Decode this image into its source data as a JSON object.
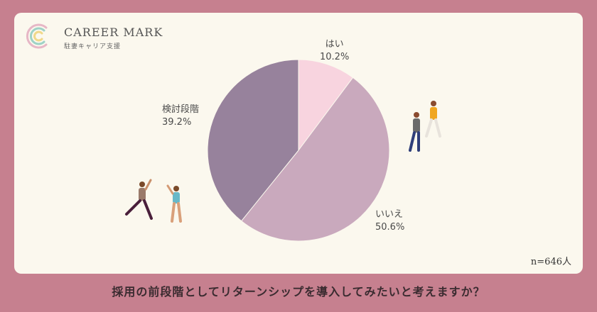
{
  "brand": {
    "name": "CAREER MARK",
    "sub": "駐妻キャリア支援"
  },
  "colors": {
    "background": "#c6808f",
    "card": "#fbf8ee",
    "slice_yes": "#f8d4df",
    "slice_no": "#c9a9bd",
    "slice_consider": "#97829c"
  },
  "chart_data": {
    "type": "pie",
    "slices": [
      {
        "label": "はい",
        "value": 10.2,
        "display": "10.2%"
      },
      {
        "label": "いいえ",
        "value": 50.6,
        "display": "50.6%"
      },
      {
        "label": "検討段階",
        "value": 39.2,
        "display": "39.2%"
      }
    ],
    "start": "12 o'clock",
    "direction": "clockwise",
    "note": "n=646人",
    "title": "採用の前段階としてリターンシップを導入してみたいと考えますか？"
  },
  "illustrations": [
    "walking-people-icon",
    "waving-people-icon"
  ]
}
